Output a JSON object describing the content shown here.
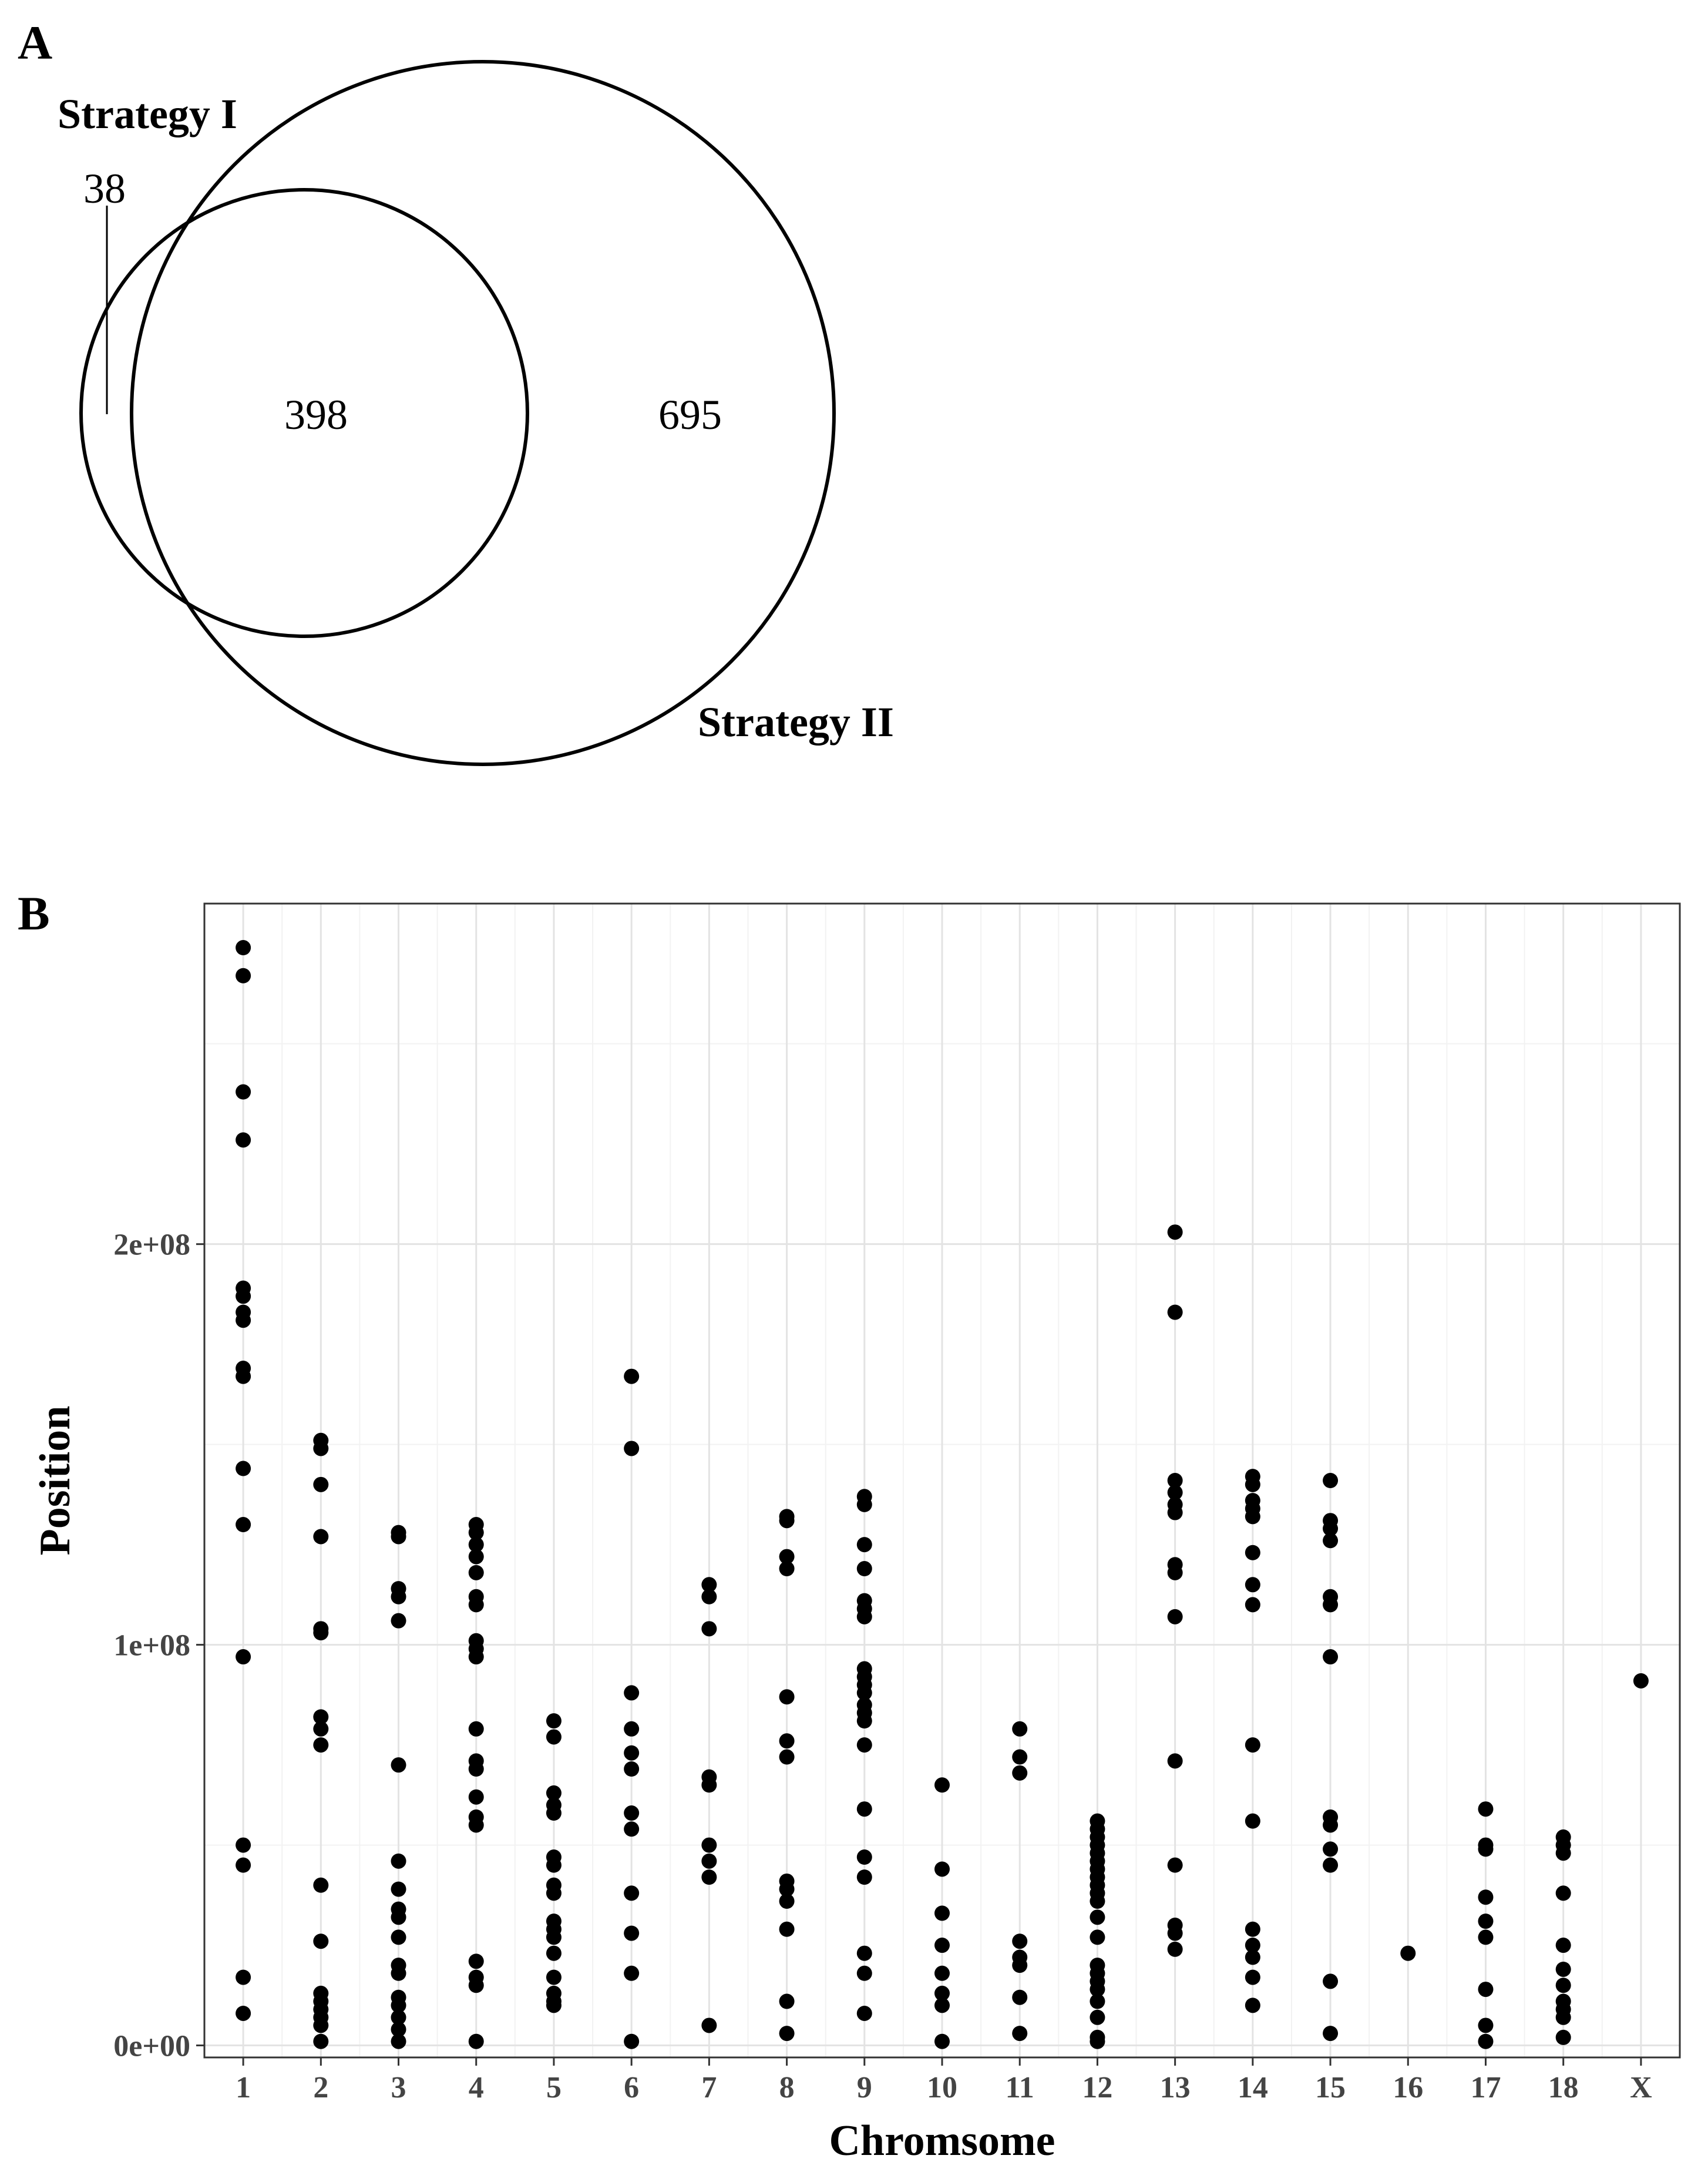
{
  "venn": {
    "panel_label": "A",
    "sets": [
      {
        "name": "Strategy I",
        "only": "38"
      },
      {
        "name": "Strategy II",
        "only": "695"
      }
    ],
    "intersection": "398"
  },
  "chart_data": {
    "panel_label": "B",
    "type": "scatter",
    "xlabel": "Chromsome",
    "ylabel": "Position",
    "categories": [
      "1",
      "2",
      "3",
      "4",
      "5",
      "6",
      "7",
      "8",
      "9",
      "10",
      "11",
      "12",
      "13",
      "14",
      "15",
      "16",
      "17",
      "18",
      "X"
    ],
    "y_ticks": [
      0,
      100000000,
      200000000
    ],
    "y_tick_labels": [
      "0e+00",
      "1e+08",
      "2e+08"
    ],
    "ylim": [
      -3000000,
      285000000
    ],
    "grid": true,
    "series": [
      {
        "chr": "1",
        "positions_mb": [
          274,
          267,
          238,
          226,
          189,
          187,
          183,
          181,
          169,
          167,
          144,
          130,
          97,
          50,
          45,
          17,
          8
        ]
      },
      {
        "chr": "2",
        "positions_mb": [
          151,
          149,
          140,
          127,
          104,
          103,
          82,
          79,
          75,
          40,
          26,
          13,
          11,
          9,
          7,
          5,
          1
        ]
      },
      {
        "chr": "3",
        "positions_mb": [
          128,
          127,
          114,
          112,
          106,
          70,
          46,
          39,
          34,
          32,
          27,
          20,
          18,
          12,
          10,
          7,
          4,
          1
        ]
      },
      {
        "chr": "4",
        "positions_mb": [
          130,
          128,
          125,
          122,
          118,
          112,
          110,
          101,
          99,
          97,
          79,
          71,
          69,
          62,
          57,
          55,
          21,
          17,
          15,
          1
        ]
      },
      {
        "chr": "5",
        "positions_mb": [
          81,
          77,
          63,
          60,
          58,
          47,
          45,
          40,
          38,
          31,
          29,
          27,
          23,
          17,
          13,
          11,
          10
        ]
      },
      {
        "chr": "6",
        "positions_mb": [
          167,
          149,
          88,
          79,
          73,
          69,
          58,
          54,
          38,
          28,
          18,
          1
        ]
      },
      {
        "chr": "7",
        "positions_mb": [
          115,
          112,
          104,
          67,
          65,
          50,
          46,
          42,
          5
        ]
      },
      {
        "chr": "8",
        "positions_mb": [
          132,
          131,
          122,
          119,
          87,
          76,
          72,
          41,
          39,
          36,
          29,
          11,
          3
        ]
      },
      {
        "chr": "9",
        "positions_mb": [
          137,
          135,
          125,
          119,
          111,
          109,
          107,
          94,
          92,
          90,
          88,
          85,
          83,
          81,
          75,
          59,
          47,
          42,
          23,
          18,
          8
        ]
      },
      {
        "chr": "10",
        "positions_mb": [
          65,
          44,
          33,
          25,
          18,
          13,
          10,
          1
        ]
      },
      {
        "chr": "11",
        "positions_mb": [
          79,
          72,
          68,
          26,
          22,
          20,
          12,
          3
        ]
      },
      {
        "chr": "12",
        "positions_mb": [
          56,
          54,
          52,
          50,
          48,
          46,
          44,
          42,
          40,
          38,
          36,
          32,
          27,
          20,
          18,
          16,
          14,
          11,
          7,
          2,
          1
        ]
      },
      {
        "chr": "13",
        "positions_mb": [
          203,
          183,
          141,
          138,
          135,
          133,
          120,
          118,
          107,
          71,
          45,
          30,
          28,
          24
        ]
      },
      {
        "chr": "14",
        "positions_mb": [
          142,
          140,
          136,
          134,
          132,
          123,
          115,
          110,
          75,
          56,
          29,
          25,
          22,
          17,
          10
        ]
      },
      {
        "chr": "15",
        "positions_mb": [
          141,
          131,
          129,
          126,
          112,
          110,
          97,
          57,
          55,
          49,
          45,
          16,
          3
        ]
      },
      {
        "chr": "16",
        "positions_mb": [
          23
        ]
      },
      {
        "chr": "17",
        "positions_mb": [
          59,
          50,
          49,
          37,
          31,
          27,
          14,
          5,
          1
        ]
      },
      {
        "chr": "18",
        "positions_mb": [
          52,
          50,
          48,
          38,
          25,
          19,
          15,
          11,
          9,
          7,
          2
        ]
      },
      {
        "chr": "X",
        "positions_mb": [
          91
        ]
      }
    ]
  }
}
